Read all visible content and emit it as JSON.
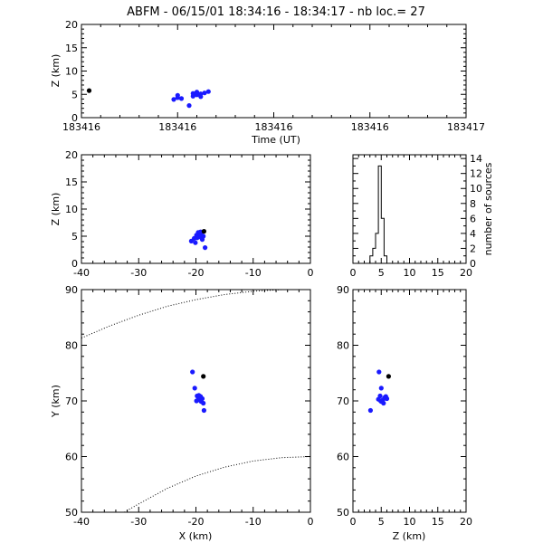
{
  "figure": {
    "title": "ABFM - 06/15/01 18:34:16 - 18:34:17 - nb loc.=      27"
  },
  "colors": {
    "points": "#1a1aff",
    "highlight": "#000000",
    "axes": "#000000",
    "background": "#ffffff"
  },
  "chart_data": [
    {
      "id": "time-height",
      "type": "scatter",
      "xlabel": "Time (UT)",
      "ylabel": "Z (km)",
      "xlim": [
        0,
        1
      ],
      "ylim": [
        0,
        20
      ],
      "x_tick_labels": [
        "183416",
        "183416",
        "183416",
        "183416",
        "183417"
      ],
      "y_tick_labels": [
        "0",
        "5",
        "10",
        "15",
        "20"
      ],
      "series": [
        {
          "color": "#1a1aff",
          "points": [
            [
              0.24,
              3.9
            ],
            [
              0.25,
              4.3
            ],
            [
              0.25,
              4.8
            ],
            [
              0.26,
              4.1
            ],
            [
              0.28,
              2.6
            ],
            [
              0.29,
              4.6
            ],
            [
              0.29,
              5.2
            ],
            [
              0.3,
              4.9
            ],
            [
              0.3,
              5.5
            ],
            [
              0.31,
              5.1
            ],
            [
              0.31,
              4.5
            ],
            [
              0.32,
              5.3
            ],
            [
              0.33,
              5.6
            ]
          ]
        },
        {
          "color": "#000000",
          "points": [
            [
              0.02,
              5.8
            ]
          ]
        }
      ]
    },
    {
      "id": "x-height",
      "type": "scatter",
      "xlabel": "",
      "ylabel": "Z (km)",
      "xlim": [
        -40,
        0
      ],
      "ylim": [
        0,
        20
      ],
      "x_tick_labels": [
        "-40",
        "-30",
        "-20",
        "-10",
        "0"
      ],
      "y_tick_labels": [
        "0",
        "5",
        "10",
        "15",
        "20"
      ],
      "series": [
        {
          "color": "#1a1aff",
          "points": [
            [
              -20.8,
              4.1
            ],
            [
              -20.3,
              4.6
            ],
            [
              -19.9,
              5.2
            ],
            [
              -19.6,
              5.7
            ],
            [
              -19.4,
              4.9
            ],
            [
              -19.1,
              5.3
            ],
            [
              -18.9,
              4.4
            ],
            [
              -18.7,
              5.0
            ],
            [
              -19.8,
              4.7
            ],
            [
              -19.2,
              5.8
            ],
            [
              -18.4,
              2.9
            ],
            [
              -20.1,
              3.8
            ]
          ]
        },
        {
          "color": "#000000",
          "points": [
            [
              -18.6,
              5.9
            ]
          ]
        }
      ]
    },
    {
      "id": "height-histogram",
      "type": "bar",
      "xlabel": "",
      "ylabel": "number of sources",
      "xlim": [
        0,
        20
      ],
      "ylim": [
        0,
        14.5
      ],
      "x_tick_labels": [
        "0",
        "5",
        "10",
        "15",
        "20"
      ],
      "y_tick_labels": [
        "0",
        "2",
        "4",
        "6",
        "8",
        "10",
        "12",
        "14"
      ],
      "bin_width": 0.5,
      "bins": [
        {
          "x": 3.0,
          "count": 1
        },
        {
          "x": 3.5,
          "count": 2
        },
        {
          "x": 4.0,
          "count": 4
        },
        {
          "x": 4.5,
          "count": 13
        },
        {
          "x": 5.0,
          "count": 6
        },
        {
          "x": 5.5,
          "count": 1
        }
      ]
    },
    {
      "id": "plan-view",
      "type": "scatter",
      "xlabel": "X (km)",
      "ylabel": "Y (km)",
      "xlim": [
        -40,
        0
      ],
      "ylim": [
        50,
        90
      ],
      "x_tick_labels": [
        "-40",
        "-30",
        "-20",
        "-10",
        "0"
      ],
      "y_tick_labels": [
        "50",
        "60",
        "70",
        "80",
        "90"
      ],
      "range_ring_outer": [
        [
          -40,
          81.3
        ],
        [
          -35,
          83.5
        ],
        [
          -30,
          85.4
        ],
        [
          -25,
          87.0
        ],
        [
          -20,
          88.2
        ],
        [
          -15,
          89.1
        ],
        [
          -10,
          89.7
        ],
        [
          -5,
          90.0
        ]
      ],
      "range_ring_inner": [
        [
          -32.5,
          50.0
        ],
        [
          -30,
          51.5
        ],
        [
          -25,
          54.3
        ],
        [
          -20,
          56.5
        ],
        [
          -15,
          58.1
        ],
        [
          -10,
          59.2
        ],
        [
          -5,
          59.8
        ],
        [
          0,
          60.0
        ]
      ],
      "series": [
        {
          "color": "#1a1aff",
          "points": [
            [
              -20.6,
              75.2
            ],
            [
              -20.2,
              72.3
            ],
            [
              -19.8,
              70.9
            ],
            [
              -19.6,
              70.2
            ],
            [
              -19.4,
              70.6
            ],
            [
              -19.1,
              69.9
            ],
            [
              -18.9,
              70.4
            ],
            [
              -18.7,
              69.6
            ],
            [
              -19.5,
              71.0
            ],
            [
              -18.6,
              68.3
            ],
            [
              -19.9,
              70.0
            ],
            [
              -19.2,
              70.8
            ]
          ]
        },
        {
          "color": "#000000",
          "points": [
            [
              -18.7,
              74.4
            ]
          ]
        }
      ]
    },
    {
      "id": "height-y",
      "type": "scatter",
      "xlabel": "Z (km)",
      "ylabel": "",
      "xlim": [
        0,
        20
      ],
      "ylim": [
        50,
        90
      ],
      "x_tick_labels": [
        "0",
        "5",
        "10",
        "15",
        "20"
      ],
      "y_tick_labels": [
        "50",
        "60",
        "70",
        "80",
        "90"
      ],
      "series": [
        {
          "color": "#1a1aff",
          "points": [
            [
              4.6,
              75.2
            ],
            [
              5.0,
              72.3
            ],
            [
              4.8,
              70.9
            ],
            [
              5.3,
              70.2
            ],
            [
              5.6,
              70.6
            ],
            [
              5.0,
              69.9
            ],
            [
              6.0,
              70.4
            ],
            [
              5.4,
              69.6
            ],
            [
              4.5,
              70.3
            ],
            [
              3.1,
              68.3
            ],
            [
              5.8,
              70.8
            ],
            [
              4.9,
              70.0
            ]
          ]
        },
        {
          "color": "#000000",
          "points": [
            [
              6.3,
              74.4
            ]
          ]
        }
      ]
    }
  ]
}
